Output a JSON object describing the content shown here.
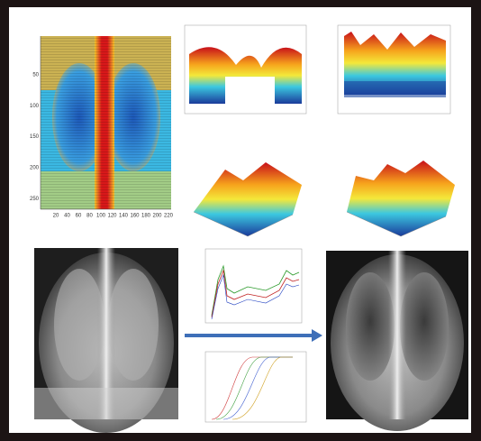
{
  "heatmap": {
    "yticks": [
      "50",
      "100",
      "150",
      "200",
      "250"
    ],
    "xticks": [
      "20",
      "40",
      "60",
      "80",
      "100",
      "120",
      "140",
      "160",
      "180",
      "200",
      "220"
    ]
  }
}
